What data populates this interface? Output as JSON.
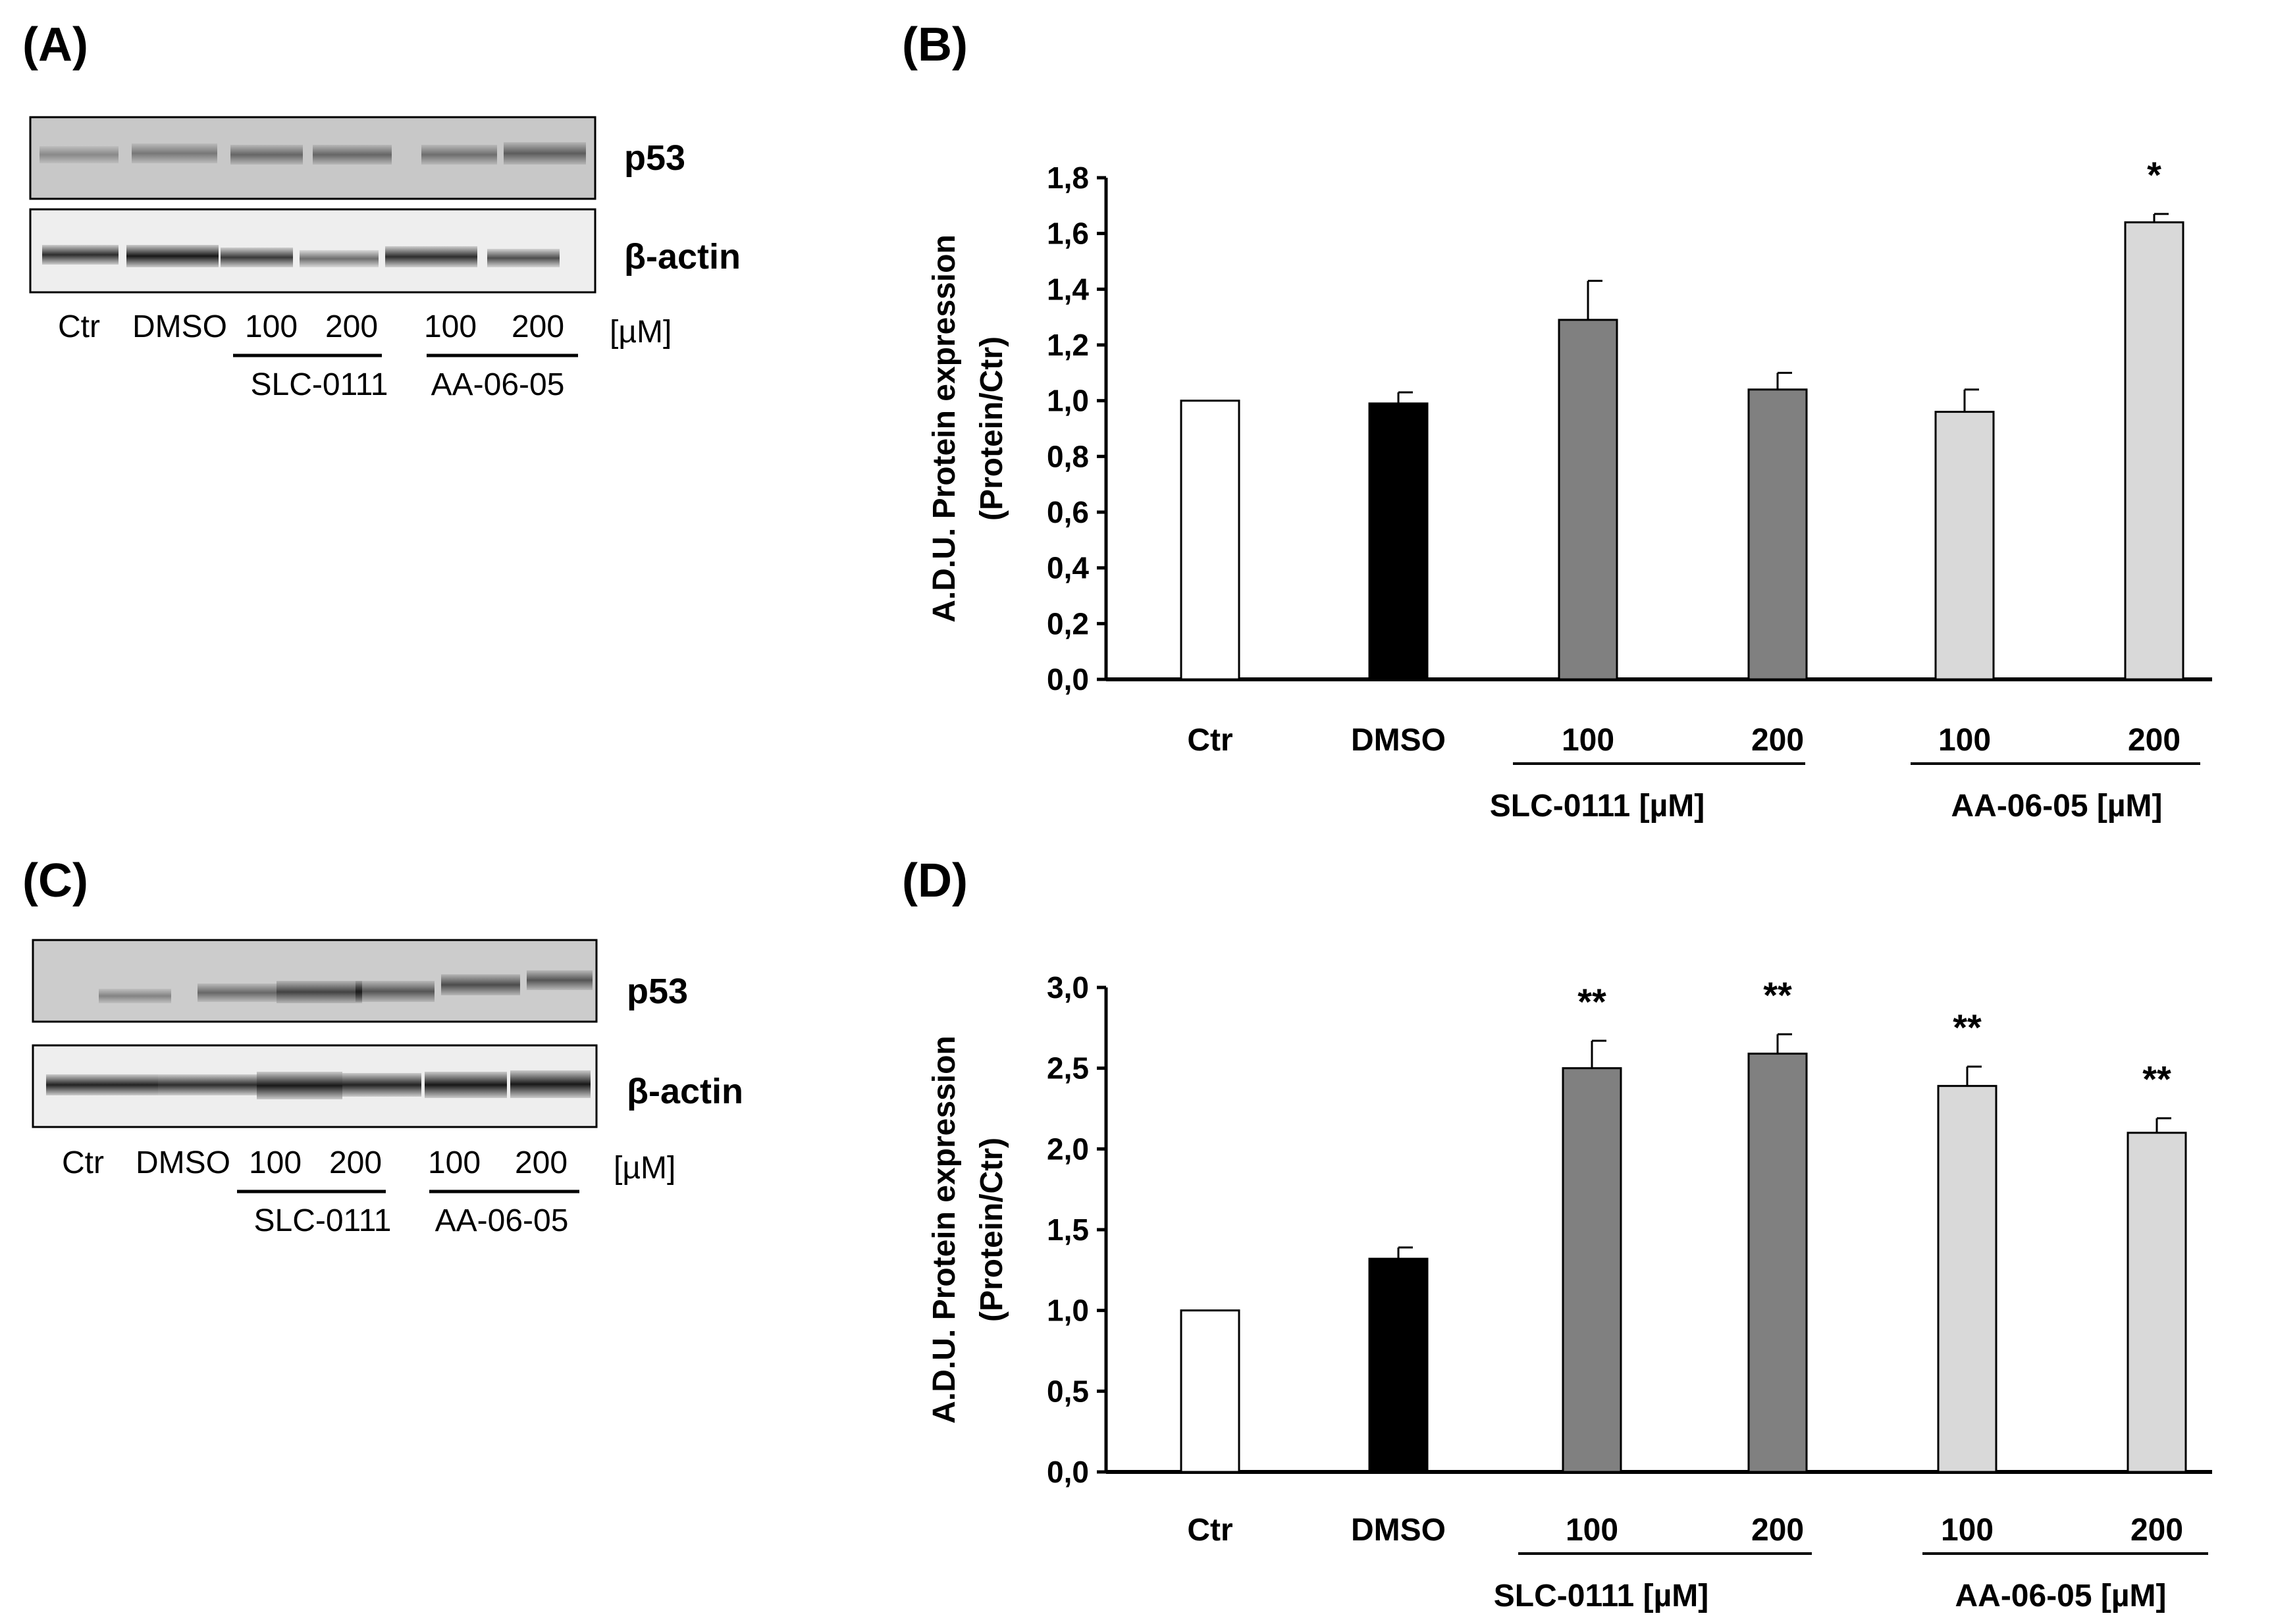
{
  "panels": {
    "A": {
      "letter": "(A)"
    },
    "B": {
      "letter": "(B)"
    },
    "C": {
      "letter": "(C)"
    },
    "D": {
      "letter": "(D)"
    }
  },
  "blots": [
    {
      "protein_top": "p53",
      "protein_bottom": "β-actin",
      "lanes": [
        "Ctr",
        "DMSO",
        "100",
        "200",
        "100",
        "200"
      ],
      "unit": "[µM]",
      "group1": "SLC-0111",
      "group2": "AA-06-05"
    },
    {
      "protein_top": "p53",
      "protein_bottom": "β-actin",
      "lanes": [
        "Ctr",
        "DMSO",
        "100",
        "200",
        "100",
        "200"
      ],
      "unit": "[µM]",
      "group1": "SLC-0111",
      "group2": "AA-06-05"
    }
  ],
  "chart_data": [
    {
      "type": "bar",
      "panel": "(B)",
      "categories": [
        "Ctr",
        "DMSO",
        "100",
        "200",
        "100",
        "200"
      ],
      "values": [
        1.0,
        0.99,
        1.29,
        1.04,
        0.96,
        1.64
      ],
      "errors": [
        0.0,
        0.04,
        0.14,
        0.06,
        0.08,
        0.03
      ],
      "significance": [
        "",
        "",
        "",
        "",
        "",
        "*"
      ],
      "colors": [
        "#ffffff",
        "#000000",
        "#808080",
        "#808080",
        "#d9d9d9",
        "#d9d9d9"
      ],
      "ylabel_line1": "A.D.U. Protein expression",
      "ylabel_line2": "(Protein/Ctr)",
      "ylim": [
        0,
        1.8
      ],
      "ytick_values": [
        0,
        0.2,
        0.4,
        0.6,
        0.8,
        1.0,
        1.2,
        1.4,
        1.6,
        1.8
      ],
      "ytick_labels": [
        "0,0",
        "0,2",
        "0,4",
        "0,6",
        "0,8",
        "1,0",
        "1,2",
        "1,4",
        "1,6",
        "1,8"
      ],
      "group_labels": [
        "SLC-0111  [µM]",
        "AA-06-05  [µM]"
      ]
    },
    {
      "type": "bar",
      "panel": "(D)",
      "categories": [
        "Ctr",
        "DMSO",
        "100",
        "200",
        "100",
        "200"
      ],
      "values": [
        1.0,
        1.32,
        2.5,
        2.59,
        2.39,
        2.1
      ],
      "errors": [
        0.0,
        0.07,
        0.17,
        0.12,
        0.12,
        0.09
      ],
      "significance": [
        "",
        "",
        "**",
        "**",
        "**",
        "**"
      ],
      "colors": [
        "#ffffff",
        "#000000",
        "#808080",
        "#808080",
        "#d9d9d9",
        "#d9d9d9"
      ],
      "ylabel_line1": "A.D.U. Protein expression",
      "ylabel_line2": "(Protein/Ctr)",
      "ylim": [
        0,
        3.0
      ],
      "ytick_values": [
        0,
        0.5,
        1.0,
        1.5,
        2.0,
        2.5,
        3.0
      ],
      "ytick_labels": [
        "0,0",
        "0,5",
        "1,0",
        "1,5",
        "2,0",
        "2,5",
        "3,0"
      ],
      "group_labels": [
        "SLC-0111  [µM]",
        "AA-06-05  [µM]"
      ]
    }
  ]
}
